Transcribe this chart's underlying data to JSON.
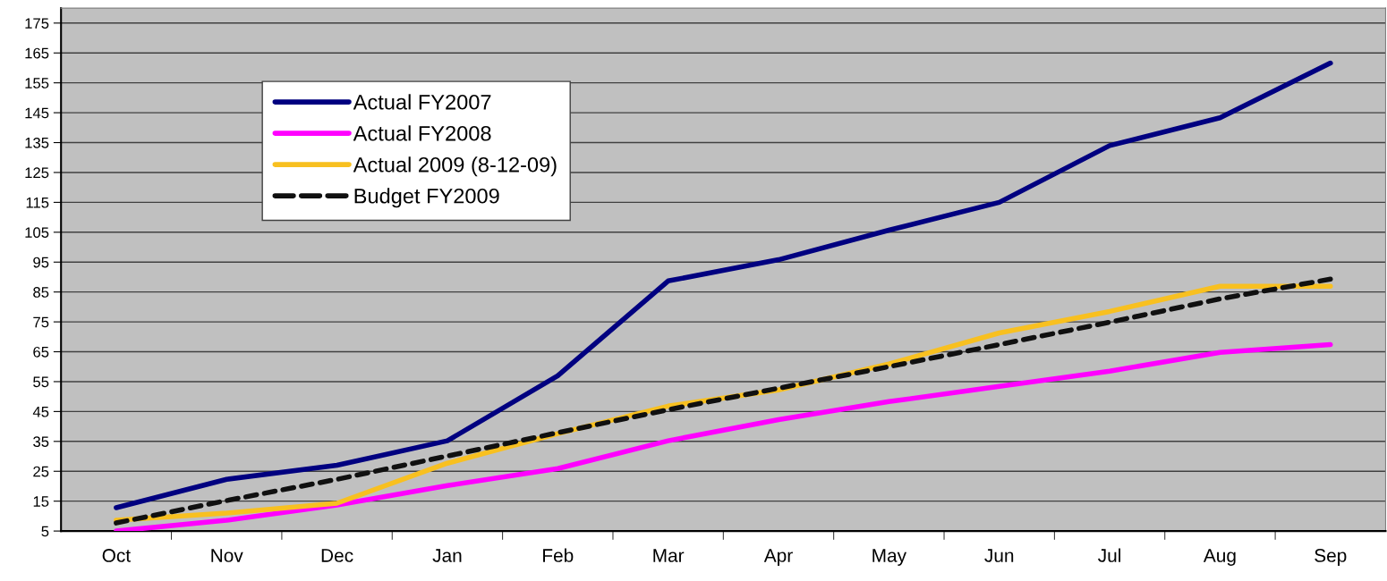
{
  "chart_data": {
    "type": "line",
    "categories": [
      "Oct",
      "Nov",
      "Dec",
      "Jan",
      "Feb",
      "Mar",
      "Apr",
      "May",
      "Jun",
      "Jul",
      "Aug",
      "Sep"
    ],
    "series": [
      {
        "name": "Actual FY2007",
        "color": "#000080",
        "values": [
          12.8,
          22.3,
          27,
          35.2,
          57,
          88.7,
          95.8,
          105.7,
          115,
          134,
          143.3,
          161.6
        ]
      },
      {
        "name": "Actual FY2008",
        "color": "#ff00ff",
        "values": [
          5,
          8.6,
          13.7,
          20.2,
          25.9,
          35.2,
          42.3,
          48.3,
          53.4,
          58.5,
          64.8,
          67.4
        ]
      },
      {
        "name": "Actual 2009 (8-12-09)",
        "color": "#f8c020",
        "values": [
          8.6,
          11,
          14.3,
          27.7,
          37.6,
          46.8,
          52.2,
          60.9,
          71.3,
          78.5,
          86.9,
          86.9
        ]
      },
      {
        "name": "Budget FY2009",
        "color": "#101010",
        "line_style": "dashed",
        "values": [
          7.7,
          15.2,
          22.3,
          30.1,
          37.9,
          45.6,
          52.8,
          60,
          67.4,
          74.9,
          82.7,
          89.3
        ]
      }
    ],
    "ylim": [
      5,
      180
    ],
    "yticks": [
      5,
      15,
      25,
      35,
      45,
      55,
      65,
      75,
      85,
      95,
      105,
      115,
      125,
      135,
      145,
      155,
      165,
      175
    ],
    "grid": "y",
    "legend": "top left",
    "marker": "none"
  }
}
